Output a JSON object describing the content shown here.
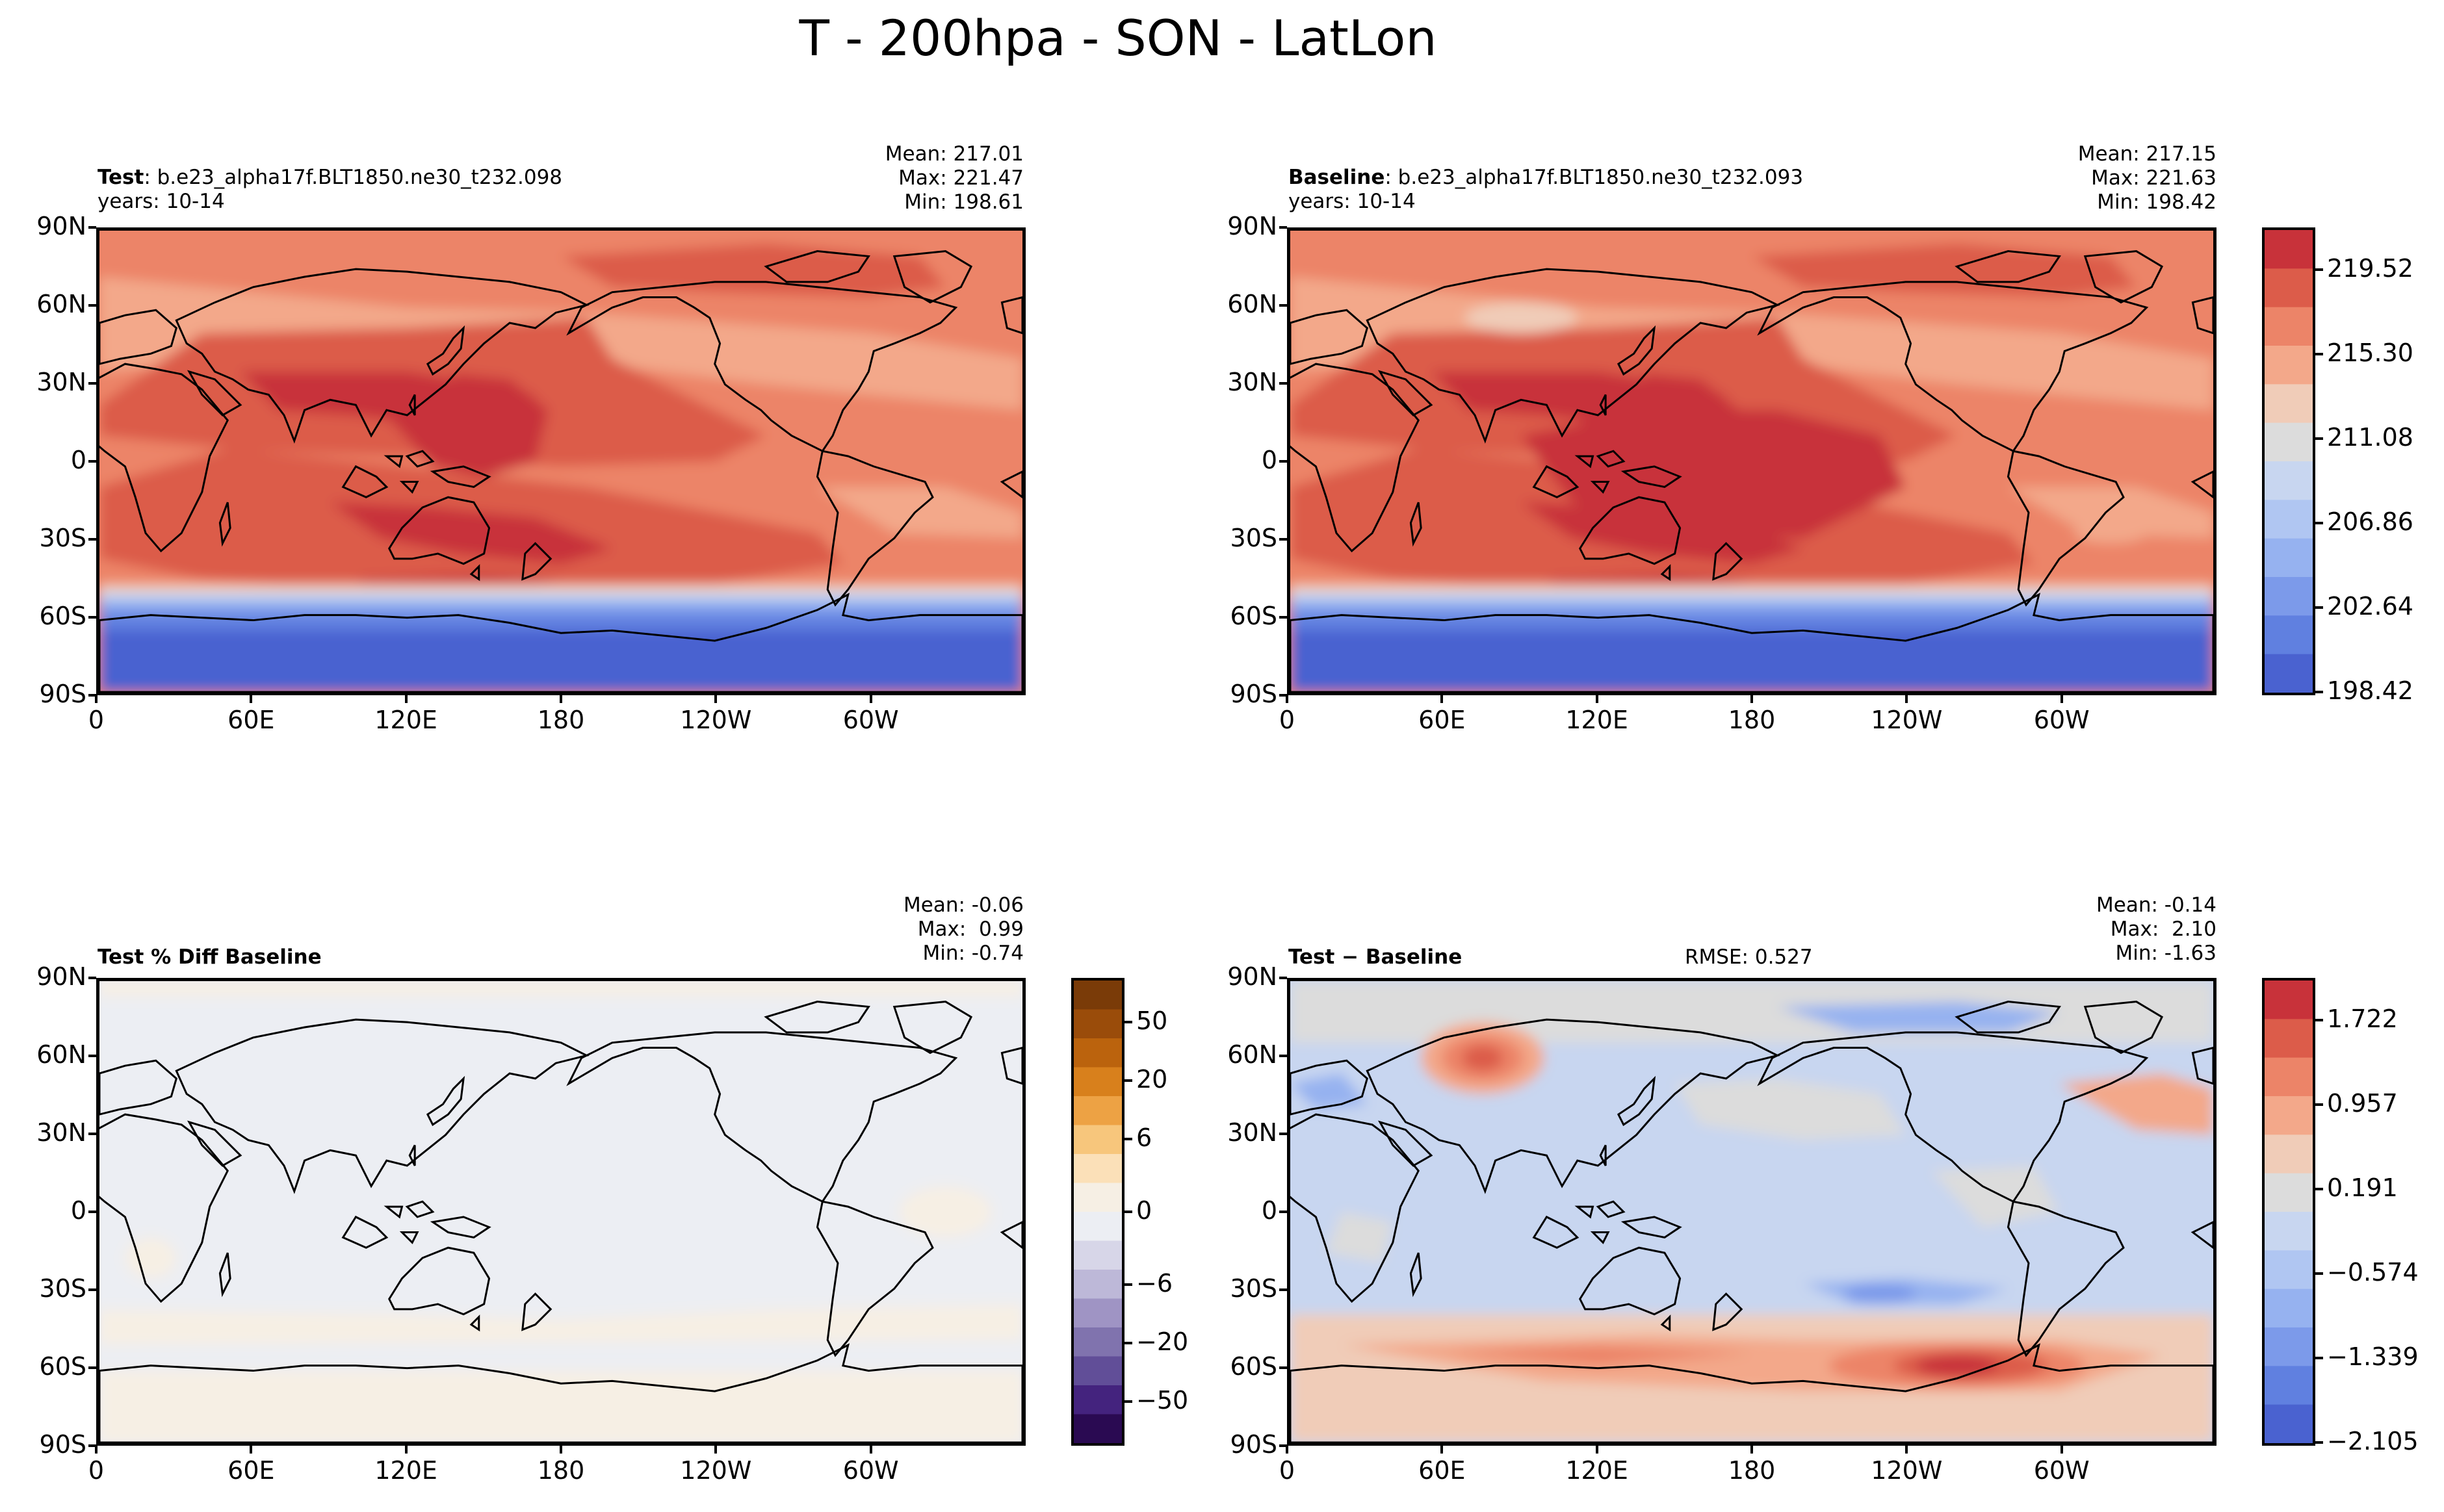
{
  "suptitle": "T - 200hpa - SON - LatLon",
  "axes": {
    "yticks": [
      "90N",
      "60N",
      "30N",
      "0",
      "30S",
      "60S",
      "90S"
    ],
    "xticks": [
      "0",
      "60E",
      "120E",
      "180",
      "120W",
      "60W"
    ]
  },
  "panels": {
    "test": {
      "label": "Test",
      "case": ": b.e23_alpha17f.BLT1850.ne30_t232.098",
      "years": "years: 10-14",
      "mean": "Mean: 217.01",
      "max": "Max: 221.47",
      "min": "Min: 198.61"
    },
    "baseline": {
      "label": "Baseline",
      "case": ": b.e23_alpha17f.BLT1850.ne30_t232.093",
      "years": "years: 10-14",
      "mean": "Mean: 217.15",
      "max": "Max: 221.63",
      "min": "Min: 198.42"
    },
    "pctdiff": {
      "label": "Test % Diff Baseline",
      "mean": "Mean: -0.06",
      "max": "Max:  0.99",
      "min": "Min: -0.74"
    },
    "diff": {
      "label": "Test − Baseline",
      "rmse": "RMSE: 0.527",
      "mean": "Mean: -0.14",
      "max": "Max:  2.10",
      "min": "Min: -1.63"
    }
  },
  "colorbars": {
    "main": {
      "ticks": [
        "219.52",
        "215.30",
        "211.08",
        "206.86",
        "202.64",
        "198.42"
      ],
      "colors": [
        "#c8323a",
        "#dc5c4a",
        "#ec8468",
        "#f3a88a",
        "#f0ccb8",
        "#dcdcdc",
        "#c8d6f0",
        "#b0c6f2",
        "#96b2f0",
        "#7c9aea",
        "#6080e0",
        "#4a62d0"
      ]
    },
    "pct": {
      "ticks": [
        "50",
        "20",
        "6",
        "0",
        "−6",
        "−20",
        "−50"
      ],
      "colors": [
        "#7a3b08",
        "#9a4c0a",
        "#bb630d",
        "#d8801c",
        "#eda244",
        "#f7c67c",
        "#fbe0b8",
        "#f6efe4",
        "#eceef3",
        "#d7d6e8",
        "#bdb8d8",
        "#9f94c4",
        "#8073ae",
        "#614e98",
        "#44237e",
        "#2a0a52"
      ]
    },
    "diff": {
      "ticks": [
        "1.722",
        "0.957",
        "0.191",
        "−0.574",
        "−1.339",
        "−2.105"
      ],
      "colors": [
        "#c8323a",
        "#dc5c4a",
        "#ec8468",
        "#f3a88a",
        "#f0ccb8",
        "#dcdcdc",
        "#c8d6f0",
        "#b0c6f2",
        "#96b2f0",
        "#7c9aea",
        "#6080e0",
        "#4a62d0"
      ]
    }
  },
  "chart_data": [
    {
      "type": "heatmap",
      "title": "Test",
      "variable": "T",
      "level": "200hpa",
      "season": "SON",
      "x": [
        "0",
        "60E",
        "120E",
        "180",
        "120W",
        "60W"
      ],
      "y": [
        "90N",
        "60N",
        "30N",
        "0",
        "30S",
        "60S",
        "90S"
      ],
      "zmin": 198.61,
      "zmax": 221.47,
      "mean": 217.01
    },
    {
      "type": "heatmap",
      "title": "Baseline",
      "x": [
        "0",
        "60E",
        "120E",
        "180",
        "120W",
        "60W"
      ],
      "y": [
        "90N",
        "60N",
        "30N",
        "0",
        "30S",
        "60S",
        "90S"
      ],
      "zmin": 198.42,
      "zmax": 221.63,
      "mean": 217.15
    },
    {
      "type": "heatmap",
      "title": "Test % Diff Baseline",
      "zmin": -0.74,
      "zmax": 0.99,
      "mean": -0.06
    },
    {
      "type": "heatmap",
      "title": "Test − Baseline",
      "zmin": -1.63,
      "zmax": 2.1,
      "mean": -0.14,
      "rmse": 0.527
    }
  ]
}
